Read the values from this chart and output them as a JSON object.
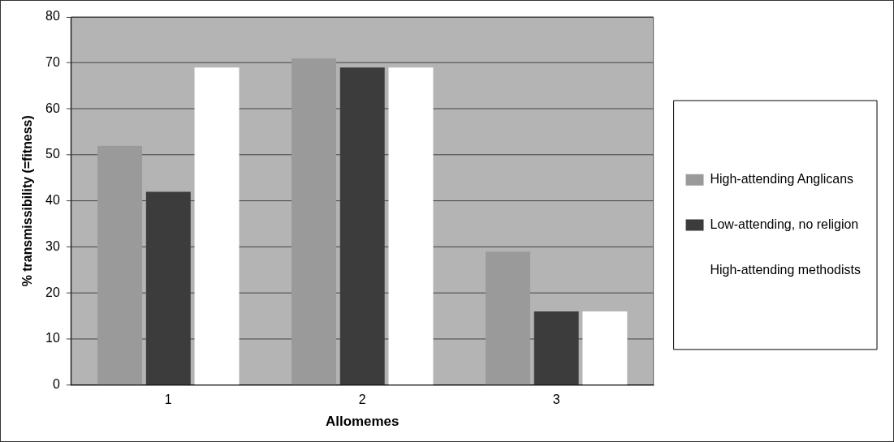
{
  "chart_data": {
    "type": "bar",
    "xlabel": "Allomemes",
    "ylabel": "% transmissibility (=fitness)",
    "categories": [
      "1",
      "2",
      "3"
    ],
    "series": [
      {
        "name": "High-attending Anglicans",
        "color": "#9a9a9a",
        "values": [
          52,
          71,
          29
        ]
      },
      {
        "name": "Low-attending, no religion",
        "color": "#3c3c3c",
        "values": [
          42,
          69,
          16
        ]
      },
      {
        "name": "High-attending methodists",
        "color": "#ffffff",
        "values": [
          69,
          69,
          16
        ]
      }
    ],
    "ylim": [
      0,
      80
    ],
    "yticks": [
      0,
      10,
      20,
      30,
      40,
      50,
      60,
      70,
      80
    ],
    "grid": "y",
    "legend": "right"
  }
}
